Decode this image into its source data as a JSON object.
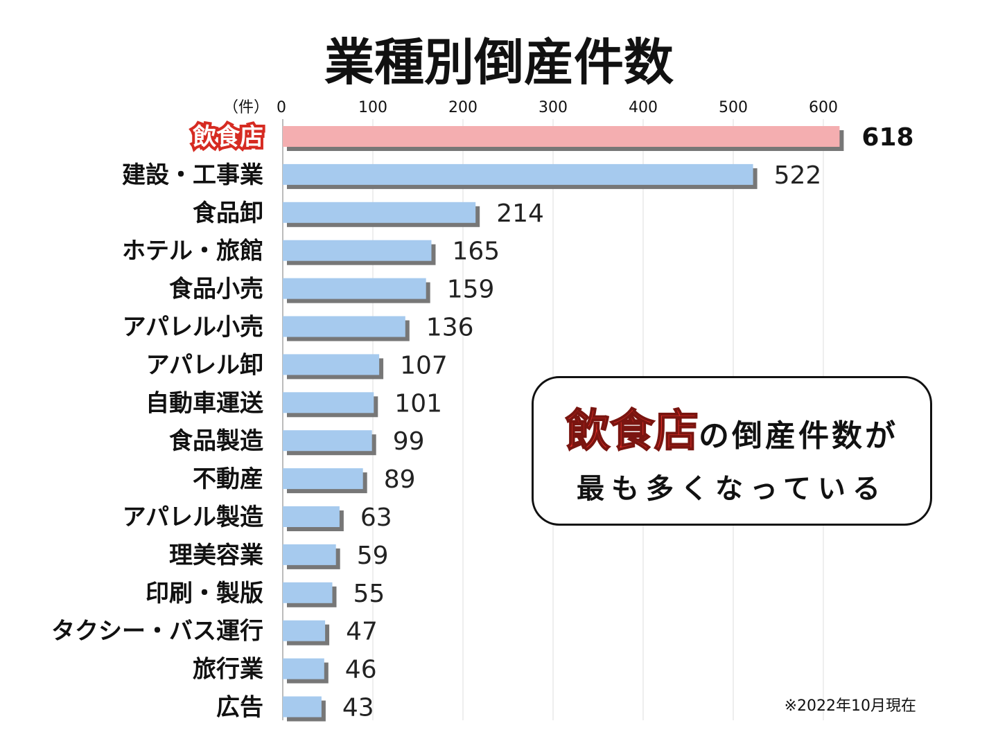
{
  "chart_data": {
    "type": "bar",
    "orientation": "horizontal",
    "title": "業種別倒産件数",
    "unit_label": "（件）",
    "xlim": [
      0,
      600
    ],
    "xticks": [
      0,
      100,
      200,
      300,
      400,
      500,
      600
    ],
    "grid": true,
    "categories": [
      "飲食店",
      "建設・工事業",
      "食品卸",
      "ホテル・旅館",
      "食品小売",
      "アパレル小売",
      "アパレル卸",
      "自動車運送",
      "食品製造",
      "不動産",
      "アパレル製造",
      "理美容業",
      "印刷・製版",
      "タクシー・バス運行",
      "旅行業",
      "広告"
    ],
    "values": [
      618,
      522,
      214,
      165,
      159,
      136,
      107,
      101,
      99,
      89,
      63,
      59,
      55,
      47,
      46,
      43
    ],
    "highlight_index": 0,
    "colors": {
      "bar": "#a6caee",
      "bar_highlight": "#f4aeb0",
      "highlight_text": "#e8302a",
      "shadow": "#777777",
      "grid": "#dddddd"
    },
    "footnote": "※2022年10月現在"
  },
  "callout": {
    "highlight": "飲食店",
    "line1_rest": "の倒産件数が",
    "line2": "最も多くなっている"
  }
}
